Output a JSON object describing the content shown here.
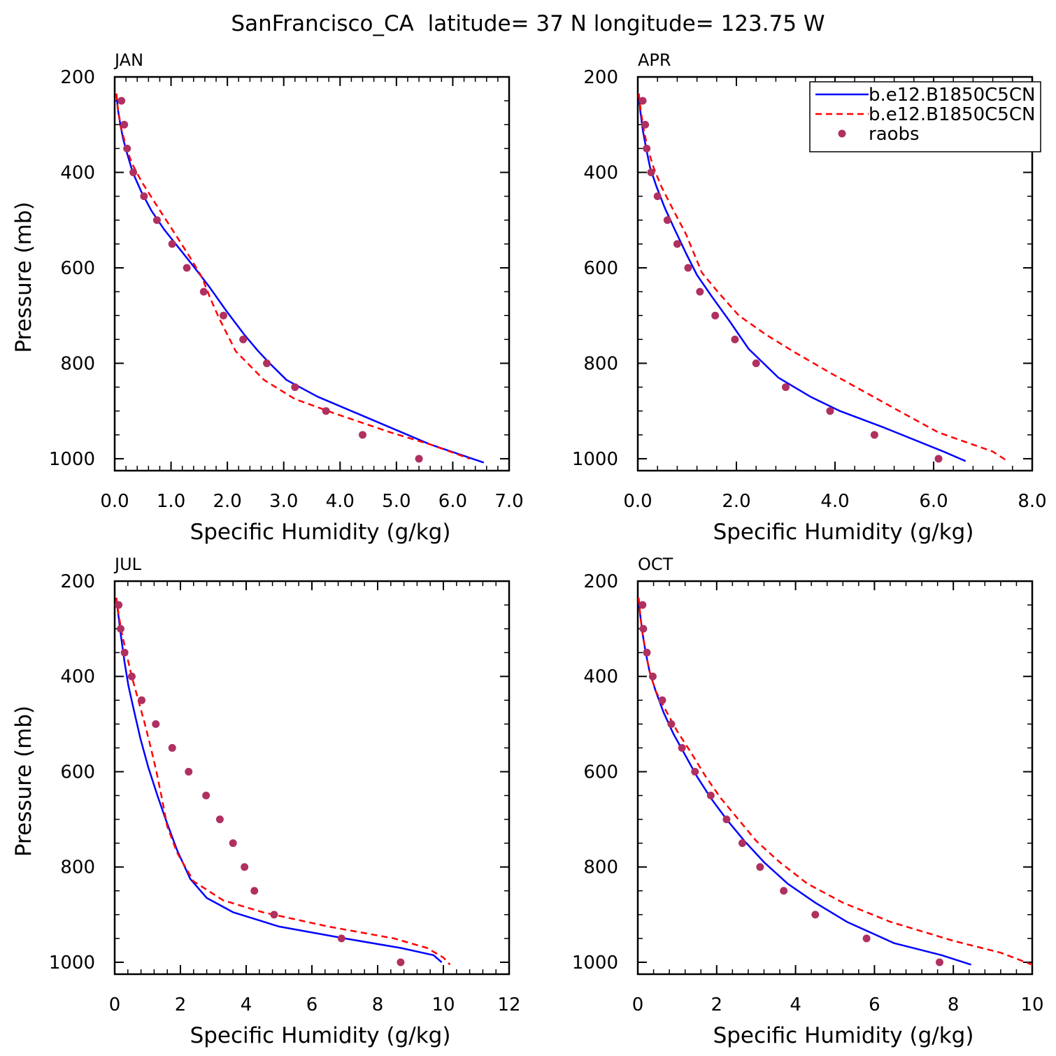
{
  "title": "SanFrancisco_CA  latitude= 37 N longitude= 123.75 W",
  "legend": {
    "placement": "top-right",
    "entries": [
      {
        "label": "b.e12.B1850C5CN",
        "color": "#0000ff",
        "style": "solid"
      },
      {
        "label": "b.e12.B1850C5CN",
        "color": "#ff0000",
        "style": "dashed"
      },
      {
        "label": "raobs",
        "color": "#b03060",
        "style": "dot"
      }
    ]
  },
  "chart_data": [
    {
      "type": "line",
      "panel_title": "JAN",
      "xlabel": "Specific Humidity (g/kg)",
      "ylabel": "Pressure (mb)",
      "xlim": [
        0,
        7
      ],
      "ylim": [
        200,
        1025
      ],
      "y_inverted": true,
      "x_ticks": [
        "0.0",
        "1.0",
        "2.0",
        "3.0",
        "4.0",
        "5.0",
        "6.0",
        "7.0"
      ],
      "x_tick_values": [
        0,
        1,
        2,
        3,
        4,
        5,
        6,
        7
      ],
      "y_ticks": [
        "200",
        "400",
        "600",
        "800",
        "1000"
      ],
      "y_tick_values": [
        200,
        400,
        600,
        800,
        1000
      ],
      "series": [
        {
          "style": "solid",
          "color": "#0000ff",
          "x": [
            0.03,
            0.06,
            0.1,
            0.15,
            0.22,
            0.32,
            0.47,
            0.65,
            0.88,
            1.15,
            1.42,
            1.68,
            1.98,
            2.3,
            2.55,
            2.75,
            3.05,
            3.6,
            4.6,
            5.6,
            6.55
          ],
          "y": [
            235,
            270,
            300,
            330,
            360,
            400,
            440,
            480,
            520,
            560,
            600,
            640,
            690,
            740,
            775,
            800,
            835,
            870,
            920,
            970,
            1008
          ]
        },
        {
          "style": "dashed",
          "color": "#ff0000",
          "x": [
            0.03,
            0.06,
            0.12,
            0.2,
            0.3,
            0.48,
            0.75,
            1.05,
            1.32,
            1.55,
            1.7,
            1.85,
            2.15,
            2.65,
            3.2,
            3.9,
            4.9,
            5.6,
            6.3
          ],
          "y": [
            235,
            270,
            310,
            345,
            380,
            420,
            470,
            525,
            575,
            620,
            665,
            705,
            775,
            835,
            875,
            905,
            945,
            970,
            1000
          ]
        }
      ],
      "raobs": {
        "color": "#b03060",
        "x": [
          0.12,
          0.17,
          0.22,
          0.33,
          0.52,
          0.75,
          1.02,
          1.28,
          1.58,
          1.93,
          2.28,
          2.7,
          3.2,
          3.75,
          4.4,
          5.4
        ],
        "y": [
          250,
          300,
          350,
          400,
          450,
          500,
          550,
          600,
          650,
          700,
          750,
          800,
          850,
          900,
          950,
          1000
        ]
      }
    },
    {
      "type": "line",
      "panel_title": "APR",
      "xlabel": "Specific Humidity (g/kg)",
      "ylabel": "Pressure (mb)",
      "xlim": [
        0,
        8
      ],
      "ylim": [
        200,
        1025
      ],
      "y_inverted": true,
      "x_ticks": [
        "0.0",
        "2.0",
        "4.0",
        "6.0",
        "8.0"
      ],
      "x_tick_values": [
        0,
        2,
        4,
        6,
        8
      ],
      "y_ticks": [
        "200",
        "400",
        "600",
        "800",
        "1000"
      ],
      "y_tick_values": [
        200,
        400,
        600,
        800,
        1000
      ],
      "series": [
        {
          "style": "solid",
          "color": "#0000ff",
          "x": [
            0.02,
            0.05,
            0.1,
            0.17,
            0.25,
            0.38,
            0.55,
            0.75,
            0.98,
            1.2,
            1.5,
            1.85,
            2.25,
            2.85,
            3.5,
            4.1,
            5.0,
            6.2,
            6.65
          ],
          "y": [
            235,
            270,
            310,
            350,
            390,
            430,
            475,
            520,
            570,
            615,
            660,
            710,
            770,
            830,
            870,
            900,
            935,
            985,
            1005
          ]
        },
        {
          "style": "dashed",
          "color": "#ff0000",
          "x": [
            0.02,
            0.06,
            0.12,
            0.2,
            0.32,
            0.48,
            0.7,
            0.98,
            1.3,
            1.62,
            2.05,
            2.6,
            3.15,
            3.9,
            4.6,
            5.3,
            6.1,
            7.2,
            7.5
          ],
          "y": [
            235,
            270,
            310,
            350,
            390,
            430,
            475,
            530,
            610,
            650,
            700,
            740,
            775,
            820,
            860,
            900,
            945,
            985,
            1005
          ]
        }
      ],
      "raobs": {
        "color": "#b03060",
        "x": [
          0.1,
          0.15,
          0.18,
          0.27,
          0.4,
          0.6,
          0.8,
          1.02,
          1.26,
          1.57,
          1.97,
          2.4,
          3.0,
          3.9,
          4.8,
          6.1
        ],
        "y": [
          250,
          300,
          350,
          400,
          450,
          500,
          550,
          600,
          650,
          700,
          750,
          800,
          850,
          900,
          950,
          1000
        ]
      }
    },
    {
      "type": "line",
      "panel_title": "JUL",
      "xlabel": "Specific Humidity (g/kg)",
      "ylabel": "Pressure (mb)",
      "xlim": [
        0,
        12
      ],
      "ylim": [
        200,
        1025
      ],
      "y_inverted": true,
      "x_ticks": [
        "0",
        "2",
        "4",
        "6",
        "8",
        "10",
        "12"
      ],
      "x_tick_values": [
        0,
        2,
        4,
        6,
        8,
        10,
        12
      ],
      "y_ticks": [
        "200",
        "400",
        "600",
        "800",
        "1000"
      ],
      "y_tick_values": [
        200,
        400,
        600,
        800,
        1000
      ],
      "series": [
        {
          "style": "solid",
          "color": "#0000ff",
          "x": [
            0.05,
            0.12,
            0.2,
            0.3,
            0.42,
            0.58,
            0.78,
            1.02,
            1.3,
            1.55,
            1.9,
            2.3,
            2.8,
            3.6,
            5.0,
            7.0,
            8.7,
            9.7,
            9.95
          ],
          "y": [
            235,
            275,
            320,
            370,
            420,
            470,
            530,
            590,
            650,
            700,
            765,
            825,
            865,
            895,
            925,
            950,
            970,
            985,
            1000
          ]
        },
        {
          "style": "dashed",
          "color": "#ff0000",
          "x": [
            0.05,
            0.12,
            0.22,
            0.35,
            0.52,
            0.72,
            0.92,
            1.1,
            1.27,
            1.42,
            1.6,
            1.9,
            2.4,
            3.3,
            4.5,
            6.5,
            8.5,
            9.5,
            10.0,
            10.2
          ],
          "y": [
            235,
            270,
            310,
            350,
            400,
            450,
            500,
            550,
            600,
            650,
            715,
            770,
            830,
            870,
            895,
            925,
            950,
            970,
            990,
            1005
          ]
        }
      ],
      "raobs": {
        "color": "#b03060",
        "x": [
          0.12,
          0.18,
          0.3,
          0.52,
          0.82,
          1.25,
          1.75,
          2.25,
          2.78,
          3.2,
          3.6,
          3.95,
          4.25,
          4.85,
          6.9,
          8.7
        ],
        "y": [
          250,
          300,
          350,
          400,
          450,
          500,
          550,
          600,
          650,
          700,
          750,
          800,
          850,
          900,
          950,
          1000
        ]
      }
    },
    {
      "type": "line",
      "panel_title": "OCT",
      "xlabel": "Specific Humidity (g/kg)",
      "ylabel": "Pressure (mb)",
      "xlim": [
        0,
        10
      ],
      "ylim": [
        200,
        1025
      ],
      "y_inverted": true,
      "x_ticks": [
        "0",
        "2",
        "4",
        "6",
        "8",
        "10"
      ],
      "x_tick_values": [
        0,
        2,
        4,
        6,
        8,
        10
      ],
      "y_ticks": [
        "200",
        "400",
        "600",
        "800",
        "1000"
      ],
      "y_tick_values": [
        200,
        400,
        600,
        800,
        1000
      ],
      "series": [
        {
          "style": "solid",
          "color": "#0000ff",
          "x": [
            0.02,
            0.06,
            0.12,
            0.2,
            0.3,
            0.45,
            0.65,
            0.9,
            1.2,
            1.5,
            1.85,
            2.25,
            2.7,
            3.2,
            3.8,
            4.5,
            5.3,
            6.5,
            7.7,
            8.45
          ],
          "y": [
            235,
            270,
            310,
            350,
            390,
            430,
            475,
            520,
            565,
            610,
            655,
            700,
            745,
            790,
            835,
            875,
            915,
            960,
            985,
            1005
          ]
        },
        {
          "style": "dashed",
          "color": "#ff0000",
          "x": [
            0.02,
            0.06,
            0.12,
            0.2,
            0.3,
            0.45,
            0.7,
            1.0,
            1.35,
            1.72,
            2.1,
            2.55,
            3.0,
            3.6,
            4.3,
            5.2,
            6.4,
            8.0,
            9.2,
            10.0
          ],
          "y": [
            235,
            270,
            310,
            350,
            390,
            430,
            470,
            515,
            560,
            610,
            655,
            700,
            745,
            790,
            835,
            875,
            915,
            955,
            980,
            1005
          ]
        }
      ],
      "raobs": {
        "color": "#b03060",
        "x": [
          0.12,
          0.14,
          0.23,
          0.38,
          0.62,
          0.85,
          1.12,
          1.45,
          1.85,
          2.25,
          2.65,
          3.1,
          3.7,
          4.5,
          5.8,
          7.65
        ],
        "y": [
          250,
          300,
          350,
          400,
          450,
          500,
          550,
          600,
          650,
          700,
          750,
          800,
          850,
          900,
          950,
          1000
        ]
      }
    }
  ]
}
